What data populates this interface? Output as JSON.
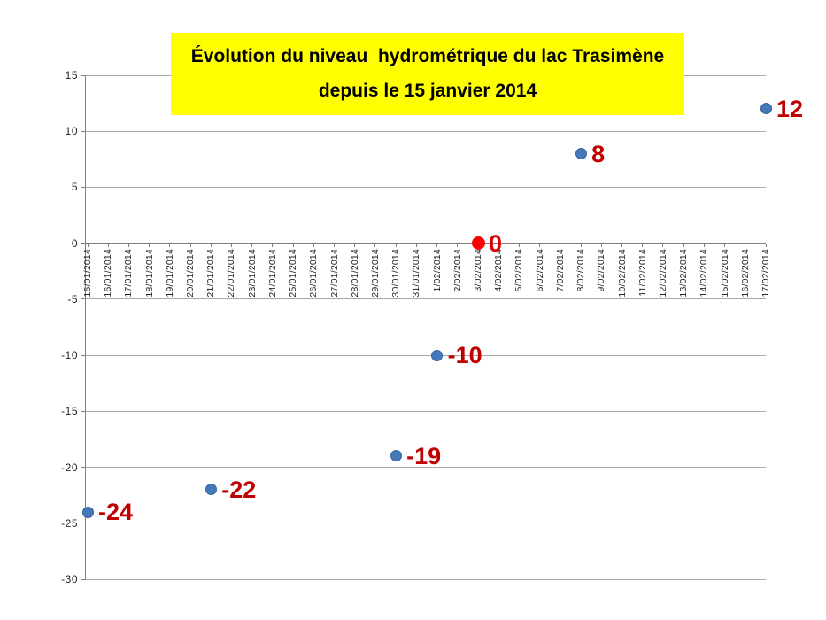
{
  "title": {
    "lines": [
      "Évolution du niveau  hydrométrique du lac Trasimène",
      "depuis le 15 janvier 2014"
    ],
    "bg_color": "#FFFF00",
    "text_color": "#000000"
  },
  "chart_data": {
    "type": "scatter",
    "title": "Évolution du niveau  hydrométrique du lac Trasimène depuis le 15 janvier 2014",
    "xlabel": "",
    "ylabel": "",
    "ylim": [
      -30,
      15
    ],
    "yticks": [
      15,
      10,
      5,
      0,
      -5,
      -10,
      -15,
      -20,
      -25,
      -30
    ],
    "grid": true,
    "legend": "none",
    "x_categories": [
      "15/01/2014",
      "16/01/2014",
      "17/01/2014",
      "18/01/2014",
      "19/01/2014",
      "20/01/2014",
      "21/01/2014",
      "22/01/2014",
      "23/01/2014",
      "24/01/2014",
      "25/01/2014",
      "26/01/2014",
      "27/01/2014",
      "28/01/2014",
      "29/01/2014",
      "30/01/2014",
      "31/01/2014",
      "1/02/2014",
      "2/02/2014",
      "3/02/2014",
      "4/02/2014",
      "5/02/2014",
      "6/02/2014",
      "7/02/2014",
      "8/02/2014",
      "9/02/2014",
      "10/02/2014",
      "11/02/2014",
      "12/02/2014",
      "13/02/2014",
      "14/02/2014",
      "15/02/2014",
      "16/02/2014",
      "17/02/2014"
    ],
    "points": [
      {
        "date": "15/01/2014",
        "value": -24,
        "label": "-24",
        "highlight": false
      },
      {
        "date": "21/01/2014",
        "value": -22,
        "label": "-22",
        "highlight": false
      },
      {
        "date": "30/01/2014",
        "value": -19,
        "label": "-19",
        "highlight": false
      },
      {
        "date": "1/02/2014",
        "value": -10,
        "label": "-10",
        "highlight": false
      },
      {
        "date": "3/02/2014",
        "value": 0,
        "label": "0",
        "highlight": true
      },
      {
        "date": "8/02/2014",
        "value": 8,
        "label": "8",
        "highlight": false
      },
      {
        "date": "17/02/2014",
        "value": 12,
        "label": "12",
        "highlight": false
      }
    ],
    "colors": {
      "marker": "#4478B8",
      "marker_border": "#38639E",
      "highlight_marker": "#FE0000",
      "label": "#C00000",
      "highlight_label": "#DD0000",
      "gridline": "#A6A6A6",
      "axis": "#808080",
      "tick_label": "#262626"
    }
  }
}
